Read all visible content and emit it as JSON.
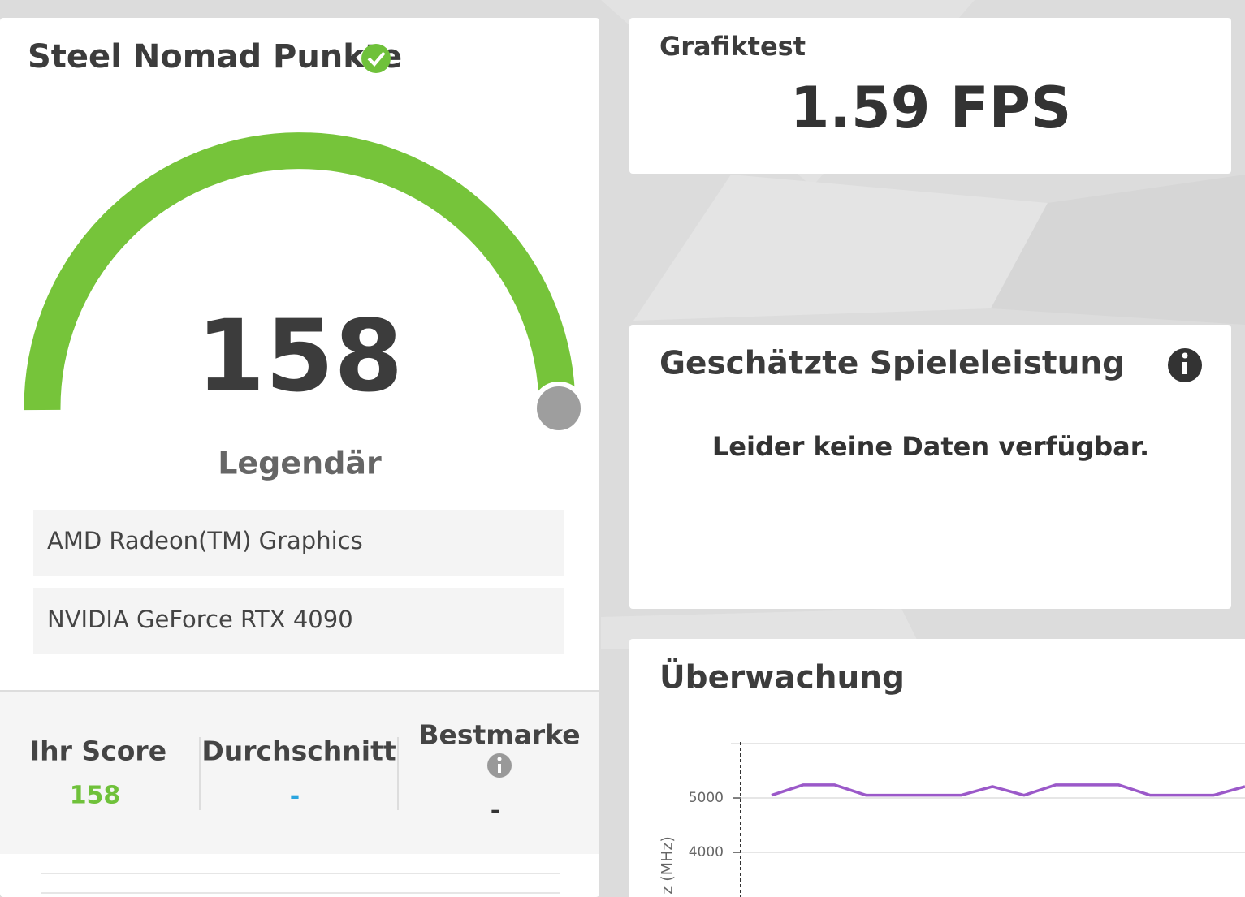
{
  "score_card": {
    "title": "Steel Nomad Punkte",
    "score": 158,
    "rating": "Legendär",
    "devices": [
      "AMD Radeon(TM) Graphics",
      "NVIDIA GeForce RTX 4090"
    ],
    "comparison": [
      {
        "label": "Ihr Score",
        "value": "158"
      },
      {
        "label": "Durchschnitt",
        "value": "-"
      },
      {
        "label": "Bestmarke",
        "value": "-"
      }
    ]
  },
  "graphics_test": {
    "label": "Grafiktest",
    "value": "1.59 FPS"
  },
  "game_performance": {
    "title": "Geschätzte Spieleleistung",
    "message": "Leider keine Daten verfügbar."
  },
  "monitoring": {
    "title": "Überwachung",
    "chart_data": {
      "type": "line",
      "y_label": "z (MHz)",
      "categories": [
        null,
        null,
        null,
        null,
        null,
        null,
        null,
        null,
        null,
        null,
        null,
        null,
        null,
        null,
        null,
        null
      ],
      "series": [
        {
          "color": "#9b59c9",
          "values": [
            5050,
            5240,
            5240,
            5050,
            5050,
            5050,
            5050,
            5210,
            5050,
            5240,
            5240,
            5240,
            5050,
            5050,
            5050,
            5210
          ]
        }
      ],
      "ylim": [
        3180,
        6000
      ],
      "yticks": [
        4000,
        5000
      ],
      "grid": true
    }
  }
}
